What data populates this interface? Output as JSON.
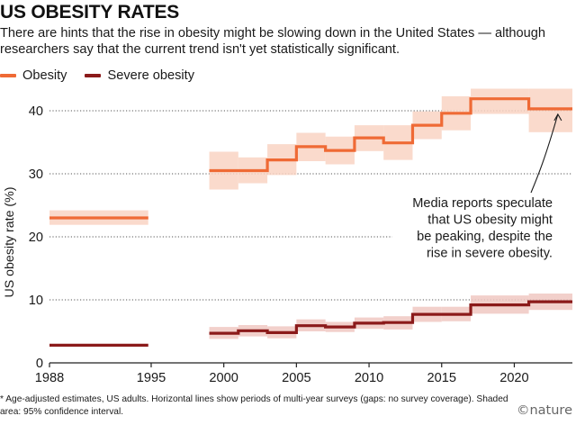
{
  "header": {
    "title": "US OBESITY RATES",
    "subtitle": "There are hints that the rise in obesity might be slowing down in the United States — although researchers say that the current trend isn't yet statistically significant."
  },
  "footer": {
    "note": "* Age-adjusted estimates, US adults. Horizontal lines show periods of multi-year surveys (gaps: no survey coverage). Shaded area: 95% confidence interval.",
    "brand": "©nature"
  },
  "colors": {
    "obesity": "#ef6a35",
    "obesity_band": "#f9d3c3",
    "severe": "#8b1a1a",
    "severe_band": "#f0c8c2",
    "grid": "#555555",
    "axis": "#222222"
  },
  "chart_data": {
    "type": "line",
    "step": true,
    "ylabel": "US obesity rate (%)",
    "xlabel": "",
    "xlim": [
      1988,
      2024
    ],
    "ylim": [
      0,
      44
    ],
    "xticks": [
      1988,
      1995,
      2000,
      2005,
      2010,
      2015,
      2020
    ],
    "yticks": [
      0,
      10,
      20,
      30,
      40
    ],
    "yticks_gridlines": [
      10,
      20,
      30,
      40
    ],
    "legend": "top-left",
    "annotation": {
      "text": [
        "Media reports speculate",
        "that US obesity might",
        "be peaking, despite the",
        "rise in severe obesity."
      ],
      "points_to": {
        "x": 2023,
        "y": 40.3
      }
    },
    "series": [
      {
        "name": "Obesity",
        "color": "#ef6a35",
        "segments": [
          [
            {
              "x0": 1988,
              "x1": 1994.8,
              "y": 23.0,
              "lo": 21.9,
              "hi": 24.2
            }
          ],
          [
            {
              "x0": 1999,
              "x1": 2001,
              "y": 30.5,
              "lo": 27.5,
              "hi": 33.5
            },
            {
              "x0": 2001,
              "x1": 2003,
              "y": 30.5,
              "lo": 28.5,
              "hi": 32.6
            },
            {
              "x0": 2003,
              "x1": 2005,
              "y": 32.2,
              "lo": 29.8,
              "hi": 34.7
            },
            {
              "x0": 2005,
              "x1": 2007,
              "y": 34.3,
              "lo": 32.0,
              "hi": 36.5
            },
            {
              "x0": 2007,
              "x1": 2009,
              "y": 33.7,
              "lo": 31.5,
              "hi": 35.9
            },
            {
              "x0": 2009,
              "x1": 2011,
              "y": 35.7,
              "lo": 33.6,
              "hi": 37.7
            },
            {
              "x0": 2011,
              "x1": 2013,
              "y": 34.9,
              "lo": 32.2,
              "hi": 37.7
            },
            {
              "x0": 2013,
              "x1": 2015,
              "y": 37.7,
              "lo": 35.5,
              "hi": 39.9
            },
            {
              "x0": 2015,
              "x1": 2017,
              "y": 39.6,
              "lo": 36.9,
              "hi": 42.3
            },
            {
              "x0": 2017,
              "x1": 2021,
              "y": 41.9,
              "lo": 39.5,
              "hi": 43.5
            },
            {
              "x0": 2021,
              "x1": 2024,
              "y": 40.3,
              "lo": 36.6,
              "hi": 43.5
            }
          ]
        ]
      },
      {
        "name": "Severe obesity",
        "color": "#8b1a1a",
        "segments": [
          [
            {
              "x0": 1988,
              "x1": 1994.8,
              "y": 2.8,
              "lo": 2.8,
              "hi": 2.8
            }
          ],
          [
            {
              "x0": 1999,
              "x1": 2001,
              "y": 4.7,
              "lo": 3.8,
              "hi": 5.7
            },
            {
              "x0": 2001,
              "x1": 2003,
              "y": 5.1,
              "lo": 4.2,
              "hi": 6.0
            },
            {
              "x0": 2003,
              "x1": 2005,
              "y": 4.8,
              "lo": 3.9,
              "hi": 5.8
            },
            {
              "x0": 2005,
              "x1": 2007,
              "y": 5.9,
              "lo": 5.0,
              "hi": 6.9
            },
            {
              "x0": 2007,
              "x1": 2009,
              "y": 5.7,
              "lo": 4.9,
              "hi": 6.5
            },
            {
              "x0": 2009,
              "x1": 2011,
              "y": 6.3,
              "lo": 5.4,
              "hi": 7.2
            },
            {
              "x0": 2011,
              "x1": 2013,
              "y": 6.4,
              "lo": 5.3,
              "hi": 7.4
            },
            {
              "x0": 2013,
              "x1": 2015,
              "y": 7.7,
              "lo": 6.5,
              "hi": 8.9
            },
            {
              "x0": 2015,
              "x1": 2017,
              "y": 7.7,
              "lo": 6.6,
              "hi": 8.9
            },
            {
              "x0": 2017,
              "x1": 2021,
              "y": 9.2,
              "lo": 7.8,
              "hi": 10.7
            },
            {
              "x0": 2021,
              "x1": 2024,
              "y": 9.7,
              "lo": 8.4,
              "hi": 11.0
            }
          ]
        ]
      }
    ]
  }
}
